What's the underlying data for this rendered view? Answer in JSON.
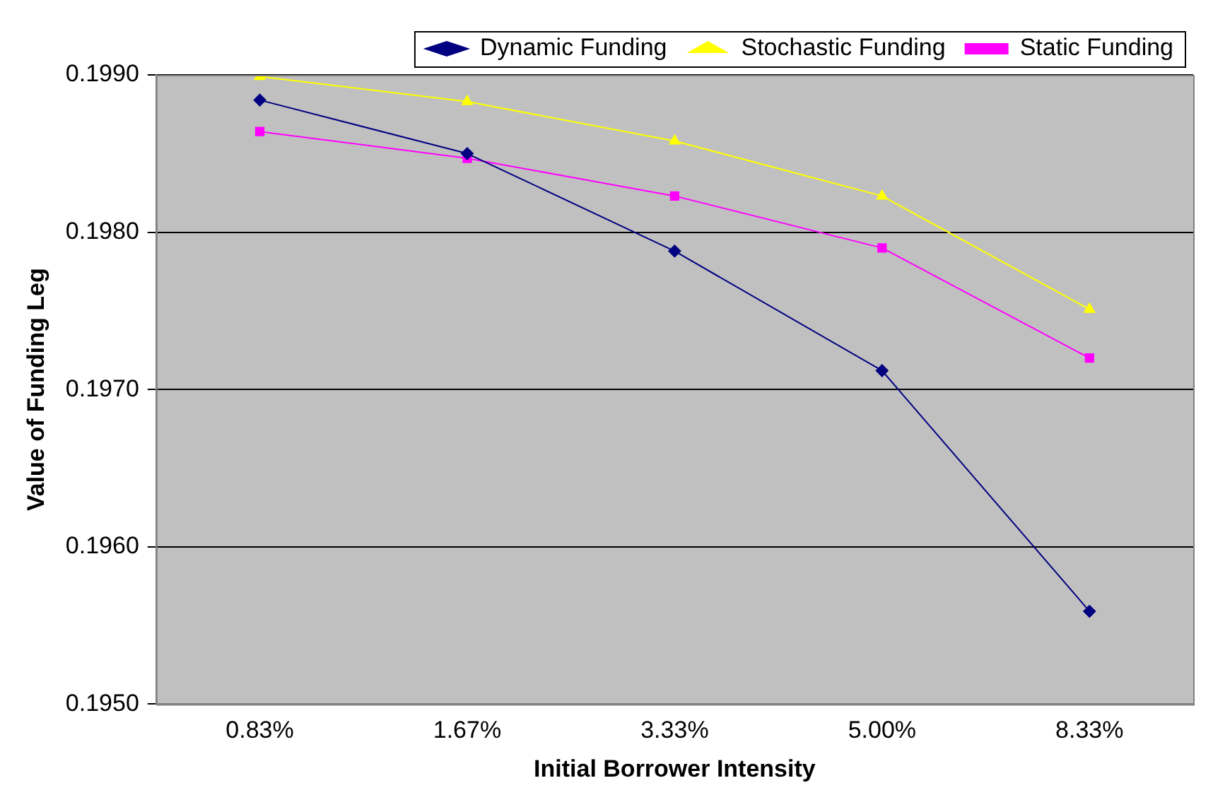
{
  "chart_data": {
    "type": "line",
    "xlabel": "Initial Borrower Intensity",
    "ylabel": "Value of Funding Leg",
    "categories": [
      "0.83%",
      "1.67%",
      "3.33%",
      "5.00%",
      "8.33%"
    ],
    "series": [
      {
        "name": "Dynamic Funding",
        "color": "#000080",
        "marker": "diamond",
        "values": [
          0.19884,
          0.1985,
          0.19788,
          0.19712,
          0.19559
        ]
      },
      {
        "name": "Stochastic Funding",
        "color": "#ffff00",
        "marker": "triangle",
        "values": [
          0.19899,
          0.19883,
          0.19858,
          0.19823,
          0.19751
        ]
      },
      {
        "name": "Static Funding",
        "color": "#ff00ff",
        "marker": "square",
        "values": [
          0.19864,
          0.19847,
          0.19823,
          0.1979,
          0.1972
        ]
      }
    ],
    "ylim": [
      0.195,
      0.199
    ],
    "yticks": [
      {
        "value": 0.195,
        "label": "0.1950"
      },
      {
        "value": 0.196,
        "label": "0.1960"
      },
      {
        "value": 0.197,
        "label": "0.1970"
      },
      {
        "value": 0.198,
        "label": "0.1980"
      },
      {
        "value": 0.199,
        "label": "0.1990"
      }
    ],
    "grid": "y",
    "legend": "top",
    "line_style": "solid"
  }
}
